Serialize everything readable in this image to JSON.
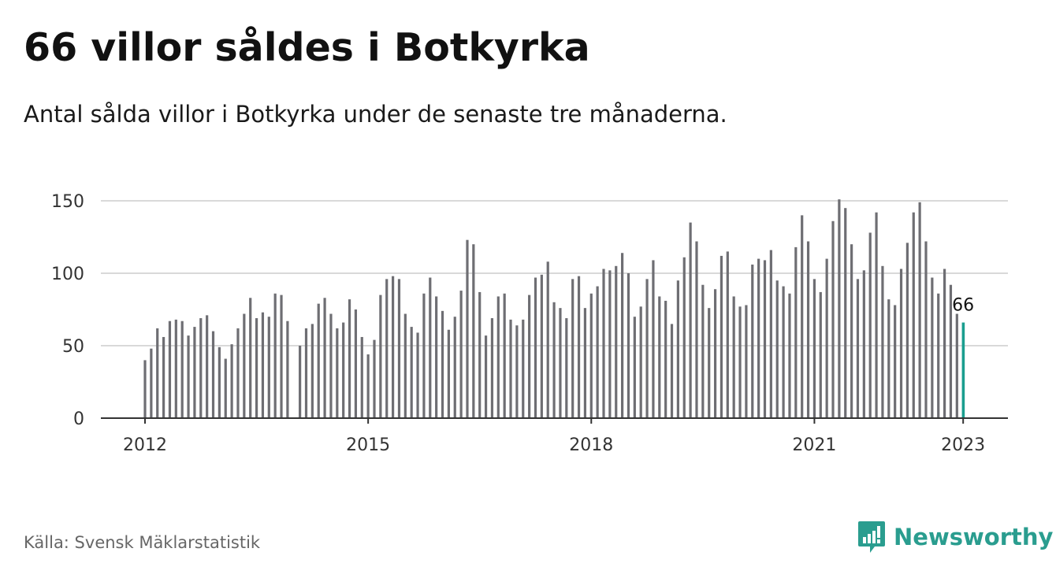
{
  "title": "66 villor såldes i Botkyrka",
  "subtitle": "Antal sålda villor i Botkyrka under de senaste tre månaderna.",
  "source": "Källa: Svensk Mäklarstatistik",
  "brand": {
    "name": "Newsworthy",
    "icon": "newsworthy-logo-icon",
    "color": "#2a9d8f"
  },
  "colors": {
    "bar": "#6e6e73",
    "highlight": "#1a9e8f",
    "grid": "#d9d9d9",
    "axis": "#333333"
  },
  "chart_data": {
    "type": "bar",
    "start": "2012-01",
    "values": [
      40,
      48,
      62,
      56,
      67,
      68,
      67,
      57,
      63,
      69,
      71,
      60,
      49,
      41,
      51,
      62,
      72,
      83,
      69,
      73,
      70,
      86,
      85,
      67,
      null,
      50,
      62,
      65,
      79,
      83,
      72,
      62,
      66,
      82,
      75,
      56,
      44,
      54,
      85,
      96,
      98,
      96,
      72,
      63,
      59,
      86,
      97,
      84,
      74,
      61,
      70,
      88,
      123,
      120,
      87,
      57,
      69,
      84,
      86,
      68,
      64,
      68,
      85,
      97,
      99,
      108,
      80,
      76,
      69,
      96,
      98,
      76,
      86,
      91,
      103,
      102,
      105,
      114,
      100,
      70,
      77,
      96,
      109,
      84,
      81,
      65,
      95,
      111,
      135,
      122,
      92,
      76,
      89,
      112,
      115,
      84,
      77,
      78,
      106,
      110,
      109,
      116,
      95,
      91,
      86,
      118,
      140,
      122,
      96,
      87,
      110,
      136,
      151,
      145,
      120,
      96,
      102,
      128,
      142,
      105,
      82,
      78,
      103,
      121,
      142,
      149,
      122,
      97,
      86,
      103,
      92,
      72,
      66
    ],
    "x_ticks": [
      "2012",
      "2015",
      "2018",
      "2021",
      "2023"
    ],
    "y_ticks": [
      "0",
      "50",
      "100",
      "150"
    ],
    "ylim": [
      0,
      150
    ],
    "last_label": "66",
    "grid": true
  }
}
